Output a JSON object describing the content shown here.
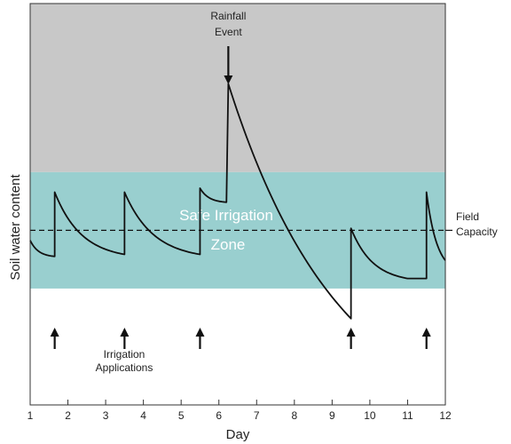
{
  "chart_data": {
    "type": "line",
    "xlabel": "Day",
    "ylabel": "Soil water content",
    "x_ticks": [
      1,
      2,
      3,
      4,
      5,
      6,
      7,
      8,
      9,
      10,
      11,
      12
    ],
    "xlim": [
      1,
      12
    ],
    "ylim": [
      0,
      100
    ],
    "grid": false,
    "zones": {
      "upper": {
        "range": [
          58,
          100
        ],
        "color": "#c8c8c8"
      },
      "safe": {
        "label_line1": "Safe Irrigation",
        "label_line2": "Zone",
        "range": [
          29,
          58
        ],
        "color": "#99cfcf"
      }
    },
    "field_capacity": {
      "y": 43.5,
      "label_line1": "Field",
      "label_line2": "Capacity"
    },
    "rainfall_event": {
      "label_line1": "Rainfall",
      "label_line2": "Event",
      "day": 6.25
    },
    "irrigation": {
      "label_line1": "Irrigation",
      "label_line2": "Applications",
      "days": [
        1.65,
        3.5,
        5.5,
        9.5,
        11.5
      ]
    },
    "series": [
      {
        "segments": [
          {
            "x0": 1.0,
            "y0": 41,
            "x1": 1.65,
            "y1": 37,
            "k": 3.0
          },
          {
            "x0": 1.65,
            "y0": 53,
            "x1": 3.5,
            "y1": 37.5,
            "k": 2.6
          },
          {
            "x0": 3.5,
            "y0": 53,
            "x1": 5.5,
            "y1": 37.5,
            "k": 2.6
          },
          {
            "x0": 5.5,
            "y0": 54,
            "x1": 6.2,
            "y1": 50.5,
            "k": 3.0
          },
          {
            "x0": 6.25,
            "y0": 80,
            "x1": 9.5,
            "y1": 21.5,
            "k": 1.1
          },
          {
            "x0": 9.5,
            "y0": 44,
            "x1": 11.0,
            "y1": 31.5,
            "k": 2.6
          },
          {
            "x0": 11.0,
            "y0": 31.5,
            "x1": 11.5,
            "y1": 31.5,
            "k": 0
          },
          {
            "x0": 11.5,
            "y0": 53,
            "x1": 12.0,
            "y1": 36,
            "k": 1.8
          }
        ]
      }
    ]
  }
}
